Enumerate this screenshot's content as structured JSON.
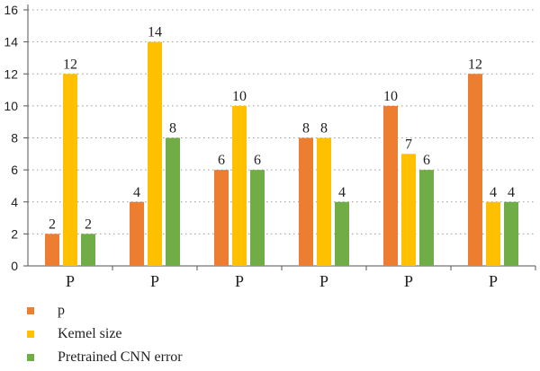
{
  "chart_data": {
    "type": "bar",
    "categories": [
      "P",
      "P",
      "P",
      "P",
      "P",
      "P"
    ],
    "series": [
      {
        "name": "p",
        "color": "#ED7D31",
        "values": [
          2,
          4,
          6,
          8,
          10,
          12
        ]
      },
      {
        "name": "Kemel size",
        "color": "#FFC000",
        "values": [
          12,
          14,
          10,
          8,
          7,
          4
        ]
      },
      {
        "name": "Pretrained CNN error",
        "color": "#70AD47",
        "values": [
          2,
          8,
          6,
          4,
          6,
          4
        ]
      }
    ],
    "yticks": [
      0,
      2,
      4,
      6,
      8,
      10,
      12,
      14,
      16
    ],
    "ylim": [
      0,
      16
    ],
    "grid": true,
    "legend_position": "bottom-left",
    "title": "",
    "xlabel": "",
    "ylabel": ""
  }
}
